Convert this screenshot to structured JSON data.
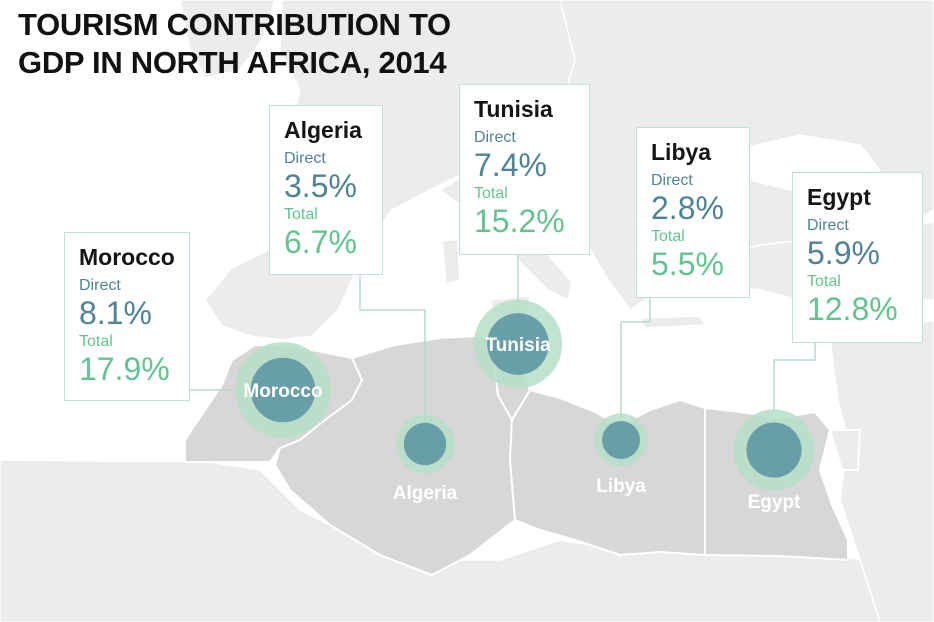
{
  "title": [
    "TOURISM CONTRIBUTION TO",
    "GDP IN NORTH AFRICA, 2014"
  ],
  "labels": {
    "direct": "Direct",
    "total": "Total"
  },
  "colors": {
    "background": "#ffffff",
    "other_countries": "#ececec",
    "highlighted_countries": "#d7d7d7",
    "borders": "#ffffff",
    "bubble_outer": "#b5dfc7",
    "bubble_inner": "#5f97a4",
    "direct_text": "#4f8497",
    "total_text": "#62c590",
    "card_border": "#c2e3d2",
    "leader_line": "#b8dcc8"
  },
  "countries": [
    {
      "id": "morocco",
      "name": "Morocco",
      "direct": "8.1%",
      "total": "17.9%",
      "direct_value": 8.1,
      "total_value": 17.9
    },
    {
      "id": "algeria",
      "name": "Algeria",
      "direct": "3.5%",
      "total": "6.7%",
      "direct_value": 3.5,
      "total_value": 6.7
    },
    {
      "id": "tunisia",
      "name": "Tunisia",
      "direct": "7.4%",
      "total": "15.2%",
      "direct_value": 7.4,
      "total_value": 15.2
    },
    {
      "id": "libya",
      "name": "Libya",
      "direct": "2.8%",
      "total": "5.5%",
      "direct_value": 2.8,
      "total_value": 5.5
    },
    {
      "id": "egypt",
      "name": "Egypt",
      "direct": "5.9%",
      "total": "12.8%",
      "direct_value": 5.9,
      "total_value": 12.8
    }
  ]
}
